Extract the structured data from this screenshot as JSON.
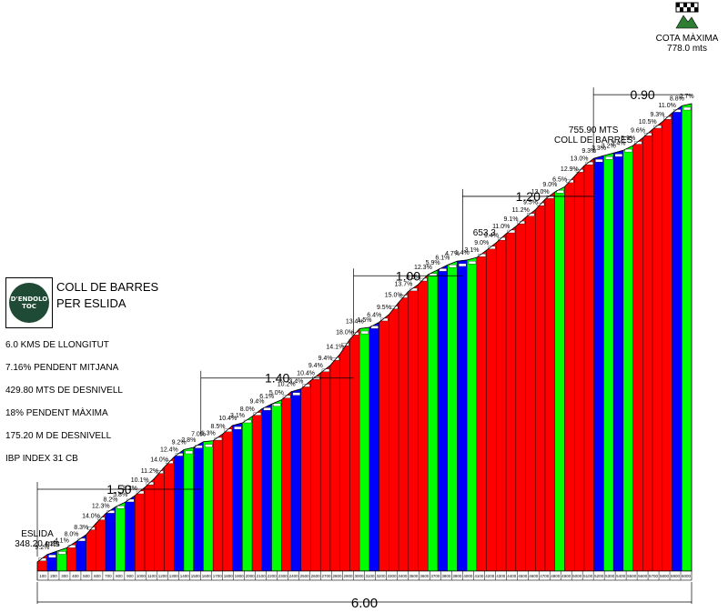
{
  "route": {
    "title_line1": "COLL DE BARRES",
    "title_line2": "PER ESLIDA",
    "logo_text_line1": "D'ENDOLO",
    "logo_text_line2": "TOC"
  },
  "stats": [
    "6.0 KMS DE LLONGITUT",
    "7.16% PENDENT MITJANA",
    "429.80 MTS DE DESNIVELL",
    "18% PENDENT MÀXIMA",
    "175.20 M DE DESNIVELL",
    "IBP INDEX 31 CB"
  ],
  "summit": {
    "label": "COTA MÀXIMA",
    "value": "778.0 mts"
  },
  "colors": {
    "red": "#ff0000",
    "blue": "#0000ff",
    "green": "#00ff00",
    "outline": "#000000"
  },
  "chart_data": {
    "type": "area",
    "title": "",
    "xlabel": "",
    "ylabel": "",
    "x_unit": "m",
    "x_ticks": [
      "100",
      "200",
      "300",
      "400",
      "500",
      "600",
      "700",
      "800",
      "900",
      "1000",
      "1100",
      "1200",
      "1300",
      "1400",
      "1500",
      "1600",
      "1700",
      "1800",
      "1900",
      "2000",
      "2100",
      "2200",
      "2300",
      "2400",
      "2500",
      "2600",
      "2700",
      "2800",
      "2900",
      "3000",
      "3100",
      "3200",
      "3300",
      "3400",
      "3500",
      "3600",
      "3700",
      "3800",
      "3900",
      "4000",
      "4100",
      "4200",
      "4300",
      "4400",
      "4500",
      "4600",
      "4700",
      "4800",
      "4900",
      "5000",
      "5100",
      "5200",
      "5300",
      "5400",
      "5500",
      "5600",
      "5700",
      "5800",
      "5900",
      "6000"
    ],
    "segments": [
      {
        "grade": "9.2%",
        "color": "red"
      },
      {
        "grade": "4.2%",
        "color": "blue"
      },
      {
        "grade": "4.1%",
        "color": "green"
      },
      {
        "grade": "8.0%",
        "color": "red"
      },
      {
        "grade": "8.3%",
        "color": "blue"
      },
      {
        "grade": "14.0%",
        "color": "red"
      },
      {
        "grade": "12.3%",
        "color": "red"
      },
      {
        "grade": "8.2%",
        "color": "blue"
      },
      {
        "grade": "5.8%",
        "color": "green"
      },
      {
        "grade": "8.2%",
        "color": "blue"
      },
      {
        "grade": "10.1%",
        "color": "red"
      },
      {
        "grade": "11.2%",
        "color": "red"
      },
      {
        "grade": "14.0%",
        "color": "red"
      },
      {
        "grade": "12.4%",
        "color": "red"
      },
      {
        "grade": "9.2%",
        "color": "blue"
      },
      {
        "grade": "2.8%",
        "color": "green"
      },
      {
        "grade": "7.0%",
        "color": "blue"
      },
      {
        "grade": "1.3%",
        "color": "green"
      },
      {
        "grade": "8.5%",
        "color": "red"
      },
      {
        "grade": "10.4%",
        "color": "red"
      },
      {
        "grade": "3.1%",
        "color": "blue"
      },
      {
        "grade": "8.0%",
        "color": "green"
      },
      {
        "grade": "9.4%",
        "color": "red"
      },
      {
        "grade": "6.1%",
        "color": "blue"
      },
      {
        "grade": "5.0%",
        "color": "green"
      },
      {
        "grade": "10.2%",
        "color": "red"
      },
      {
        "grade": "3.4%",
        "color": "blue"
      },
      {
        "grade": "10.4%",
        "color": "red"
      },
      {
        "grade": "9.4%",
        "color": "red"
      },
      {
        "grade": "9.4%",
        "color": "red"
      },
      {
        "grade": "14.1%",
        "color": "red"
      },
      {
        "grade": "18.0%",
        "color": "red"
      },
      {
        "grade": "13.4%",
        "color": "red"
      },
      {
        "grade": "1.5%",
        "color": "green"
      },
      {
        "grade": "6.4%",
        "color": "blue"
      },
      {
        "grade": "9.5%",
        "color": "red"
      },
      {
        "grade": "15.0%",
        "color": "red"
      },
      {
        "grade": "13.7%",
        "color": "red"
      },
      {
        "grade": "8.5%",
        "color": "red"
      },
      {
        "grade": "12.3%",
        "color": "red"
      },
      {
        "grade": "5.9%",
        "color": "green"
      },
      {
        "grade": "6.1%",
        "color": "blue"
      },
      {
        "grade": "4.7%",
        "color": "green"
      },
      {
        "grade": "1.4%",
        "color": "blue"
      },
      {
        "grade": "3.1%",
        "color": "green"
      },
      {
        "grade": "9.0%",
        "color": "red"
      },
      {
        "grade": "9.4%",
        "color": "red"
      },
      {
        "grade": "11.0%",
        "color": "red"
      },
      {
        "grade": "9.1%",
        "color": "red"
      },
      {
        "grade": "11.2%",
        "color": "red"
      },
      {
        "grade": "9.5%",
        "color": "red"
      },
      {
        "grade": "13.0%",
        "color": "red"
      },
      {
        "grade": "9.0%",
        "color": "red"
      },
      {
        "grade": "6.5%",
        "color": "green"
      },
      {
        "grade": "12.9%",
        "color": "red"
      },
      {
        "grade": "13.0%",
        "color": "red"
      },
      {
        "grade": "9.3%",
        "color": "red"
      },
      {
        "grade": "3.3%",
        "color": "blue"
      },
      {
        "grade": "3.2%",
        "color": "green"
      },
      {
        "grade": "3.4%",
        "color": "blue"
      },
      {
        "grade": "5.9%",
        "color": "green"
      },
      {
        "grade": "9.6%",
        "color": "red"
      },
      {
        "grade": "10.5%",
        "color": "red"
      },
      {
        "grade": "9.3%",
        "color": "red"
      },
      {
        "grade": "11.0%",
        "color": "red"
      },
      {
        "grade": "8.8%",
        "color": "blue"
      },
      {
        "grade": "2.7%",
        "color": "green"
      }
    ],
    "annotations": [
      {
        "text": "ESLIDA",
        "sub": "348.20 mts",
        "km": 0.0
      },
      {
        "text": "653.3",
        "km": 4.1
      },
      {
        "text": "755.90 MTS",
        "sub": "COLL DE BARRES",
        "km": 5.1
      },
      {
        "text": "COTA MÀXIMA",
        "sub": "778.0 mts",
        "km": 6.0
      }
    ],
    "start_elevation": 348.2,
    "end_elevation": 778.0,
    "sections": [
      {
        "label": "1.50",
        "from_km": 0.0,
        "to_km": 1.5
      },
      {
        "label": "1.40",
        "from_km": 1.5,
        "to_km": 2.9
      },
      {
        "label": "1.00",
        "from_km": 2.9,
        "to_km": 3.9
      },
      {
        "label": "1.20",
        "from_km": 3.9,
        "to_km": 5.1
      },
      {
        "label": "0.90",
        "from_km": 5.1,
        "to_km": 6.0
      }
    ],
    "total_label": "6.00",
    "grid": false,
    "legend": "none"
  }
}
